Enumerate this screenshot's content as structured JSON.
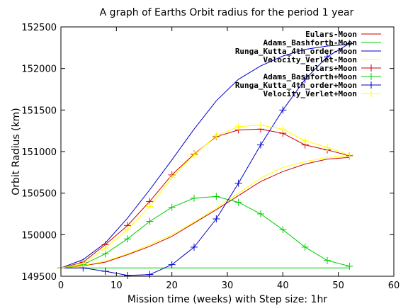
{
  "chart_data": {
    "type": "line",
    "title": "A graph of Earths Orbit radius for the period 1 year",
    "xlabel": "Mission time (weeks) with Step size: 1hr",
    "ylabel": "Orbit Radius (km)",
    "xlim": [
      0,
      60
    ],
    "ylim": [
      149500,
      152500
    ],
    "xticks": [
      0,
      10,
      20,
      30,
      40,
      50,
      60
    ],
    "yticks": [
      149500,
      150000,
      150500,
      151000,
      151500,
      152000,
      152500
    ],
    "grid": false,
    "legend_position": "top-right",
    "series": [
      {
        "name": "Eulars-Moon",
        "color": "#cc0000",
        "marker": "none",
        "x": [
          0,
          4,
          8,
          12,
          16,
          20,
          24,
          28,
          32,
          36,
          40,
          44,
          48,
          52
        ],
        "y": [
          149600,
          149625,
          149670,
          149760,
          149860,
          149980,
          150140,
          150300,
          150470,
          150640,
          150760,
          150850,
          150910,
          150930
        ]
      },
      {
        "name": "Adams_Bashforth-Moon",
        "color": "#00cc00",
        "marker": "none",
        "x": [
          0,
          52
        ],
        "y": [
          149600,
          149600
        ]
      },
      {
        "name": "Runga_Kutta_4th_order-Moon",
        "color": "#0000cc",
        "marker": "none",
        "x": [
          0,
          4,
          8,
          12,
          16,
          20,
          24,
          28,
          32,
          36,
          40,
          44,
          48,
          52
        ],
        "y": [
          149600,
          149700,
          149900,
          150200,
          150540,
          150900,
          151270,
          151610,
          151870,
          152030,
          152150,
          152230,
          152270,
          152290
        ]
      },
      {
        "name": "Velocity_Verlet-Moon",
        "color": "#ffff00",
        "marker": "none",
        "x": [
          0,
          4,
          8,
          12,
          16,
          20,
          24,
          28,
          32,
          36,
          40,
          44,
          48,
          52
        ],
        "y": [
          149600,
          149630,
          149680,
          149770,
          149880,
          150000,
          150150,
          150320,
          150500,
          150680,
          150810,
          150880,
          150930,
          150950
        ]
      },
      {
        "name": "Eulars+Moon",
        "color": "#cc0000",
        "marker": "plus",
        "x": [
          0,
          4,
          8,
          12,
          16,
          20,
          24,
          28,
          32,
          36,
          40,
          44,
          48,
          52
        ],
        "y": [
          149600,
          149670,
          149880,
          150110,
          150400,
          150720,
          150970,
          151180,
          151260,
          151270,
          151220,
          151080,
          151020,
          150950
        ]
      },
      {
        "name": "Adams_Bashforth+Moon",
        "color": "#00cc00",
        "marker": "plus",
        "x": [
          0,
          4,
          8,
          12,
          16,
          20,
          24,
          28,
          32,
          36,
          40,
          44,
          48,
          52
        ],
        "y": [
          149600,
          149640,
          149770,
          149950,
          150160,
          150330,
          150440,
          150460,
          150390,
          150250,
          150060,
          149850,
          149690,
          149620
        ]
      },
      {
        "name": "Runga_Kutta_4th_order+Moon",
        "color": "#0000cc",
        "marker": "plus",
        "x": [
          0,
          4,
          8,
          12,
          16,
          20,
          24,
          28,
          32,
          36,
          40,
          44,
          48,
          52
        ],
        "y": [
          149600,
          149600,
          149560,
          149510,
          149520,
          149640,
          149850,
          150190,
          150620,
          151080,
          151500,
          151870,
          152140,
          152300
        ]
      },
      {
        "name": "Velocity_Verlet+Moon",
        "color": "#ffff00",
        "marker": "plus",
        "x": [
          0,
          4,
          8,
          12,
          16,
          20,
          24,
          28,
          32,
          36,
          40,
          44,
          48,
          52
        ],
        "y": [
          149600,
          149650,
          149840,
          150060,
          150340,
          150690,
          150960,
          151190,
          151300,
          151320,
          151270,
          151130,
          151050,
          150960
        ]
      }
    ]
  }
}
